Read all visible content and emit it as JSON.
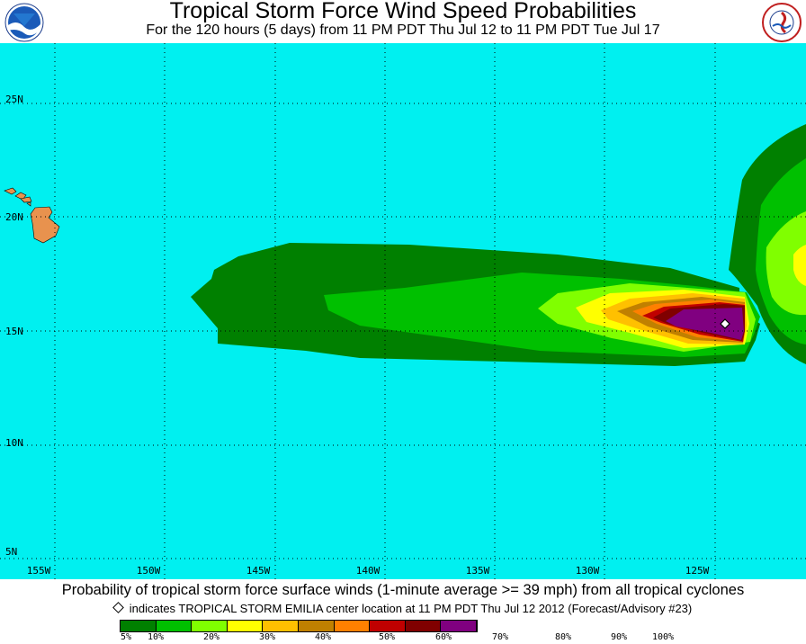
{
  "header": {
    "title": "Tropical Storm Force Wind Speed Probabilities",
    "subtitle": "For the 120 hours (5 days) from 11 PM PDT Thu Jul 12 to 11 PM PDT Tue Jul 17"
  },
  "logos": {
    "left": "NOAA",
    "right": "National Weather Service"
  },
  "map": {
    "ocean_color": "#00f0f0",
    "land_color": "#e8924e",
    "lat_labels": [
      "25N",
      "20N",
      "15N",
      "10N",
      "5N"
    ],
    "lon_labels": [
      "155W",
      "150W",
      "145W",
      "140W",
      "135W",
      "130W",
      "125W"
    ],
    "storm_marker": "diamond"
  },
  "footer": {
    "line1": "Probability of tropical storm force surface winds (1-minute average >= 39 mph) from all tropical cyclones",
    "line2": "indicates TROPICAL STORM EMILIA center location at 11 PM PDT Thu Jul 12 2012 (Forecast/Advisory #23)"
  },
  "legend": {
    "colors": [
      "#008000",
      "#00c000",
      "#80ff00",
      "#ffff00",
      "#ffc000",
      "#c08000",
      "#ff8000",
      "#c00000",
      "#800000",
      "#800080"
    ],
    "labels": [
      "5%",
      "10%",
      "20%",
      "30%",
      "40%",
      "50%",
      "60%",
      "70%",
      "80%",
      "90%",
      "100%"
    ]
  }
}
